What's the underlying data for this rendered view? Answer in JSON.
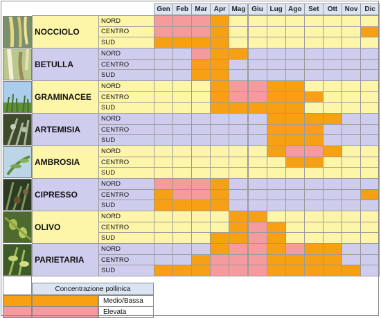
{
  "months": [
    "Gen",
    "Feb",
    "Mar",
    "Apr",
    "Mag",
    "Giu",
    "Lug",
    "Ago",
    "Set",
    "Ott",
    "Nov",
    "Dic"
  ],
  "colors": {
    "none_light": "#fdf5a8",
    "none_dark": "#cfcdee",
    "medium": "#f7a013",
    "high": "#f59a9d",
    "month_header": "#dbe4f3"
  },
  "level_codes": {
    "0": "nessuna",
    "1": "Medio/Bassa",
    "2": "Elevata"
  },
  "plants": [
    {
      "name": "NOCCIOLO",
      "band": "light",
      "photo_icon": "hazel-catkins-photo",
      "regions": [
        {
          "label": "NORD",
          "levels": [
            2,
            2,
            2,
            1,
            0,
            0,
            0,
            0,
            0,
            0,
            0,
            0
          ]
        },
        {
          "label": "CENTRO",
          "levels": [
            2,
            2,
            2,
            1,
            0,
            0,
            0,
            0,
            0,
            0,
            0,
            1
          ]
        },
        {
          "label": "SUD",
          "levels": [
            1,
            1,
            1,
            1,
            0,
            0,
            0,
            0,
            0,
            0,
            0,
            0
          ]
        }
      ]
    },
    {
      "name": "BETULLA",
      "band": "dark",
      "photo_icon": "birch-catkins-photo",
      "regions": [
        {
          "label": "NORD",
          "levels": [
            0,
            0,
            2,
            1,
            1,
            0,
            0,
            0,
            0,
            0,
            0,
            0
          ]
        },
        {
          "label": "CENTRO",
          "levels": [
            0,
            0,
            1,
            1,
            0,
            0,
            0,
            0,
            0,
            0,
            0,
            0
          ]
        },
        {
          "label": "SUD",
          "levels": [
            0,
            0,
            1,
            1,
            0,
            0,
            0,
            0,
            0,
            0,
            0,
            0
          ]
        }
      ]
    },
    {
      "name": "GRAMINACEE",
      "band": "light",
      "photo_icon": "grass-photo",
      "regions": [
        {
          "label": "NORD",
          "levels": [
            0,
            0,
            0,
            1,
            2,
            2,
            1,
            1,
            0,
            0,
            0,
            0
          ]
        },
        {
          "label": "CENTRO",
          "levels": [
            0,
            0,
            0,
            1,
            2,
            2,
            1,
            1,
            1,
            0,
            0,
            0
          ]
        },
        {
          "label": "SUD",
          "levels": [
            0,
            0,
            0,
            1,
            1,
            1,
            1,
            1,
            0,
            0,
            0,
            0
          ]
        }
      ]
    },
    {
      "name": "ARTEMISIA",
      "band": "dark",
      "photo_icon": "mugwort-photo",
      "regions": [
        {
          "label": "NORD",
          "levels": [
            0,
            0,
            0,
            0,
            0,
            0,
            1,
            1,
            1,
            1,
            0,
            0
          ]
        },
        {
          "label": "CENTRO",
          "levels": [
            0,
            0,
            0,
            0,
            0,
            0,
            1,
            1,
            1,
            0,
            0,
            0
          ]
        },
        {
          "label": "SUD",
          "levels": [
            0,
            0,
            0,
            0,
            0,
            0,
            1,
            1,
            1,
            0,
            0,
            0
          ]
        }
      ]
    },
    {
      "name": "AMBROSIA",
      "band": "light",
      "photo_icon": "ragweed-photo",
      "regions": [
        {
          "label": "NORD",
          "levels": [
            0,
            0,
            0,
            0,
            0,
            0,
            1,
            2,
            2,
            1,
            0,
            0
          ]
        },
        {
          "label": "CENTRO",
          "levels": [
            0,
            0,
            0,
            0,
            0,
            0,
            0,
            1,
            1,
            0,
            0,
            0
          ]
        },
        {
          "label": "SUD",
          "levels": [
            0,
            0,
            0,
            0,
            0,
            0,
            0,
            0,
            0,
            0,
            0,
            0
          ]
        }
      ]
    },
    {
      "name": "CIPRESSO",
      "band": "dark",
      "photo_icon": "cypress-photo",
      "regions": [
        {
          "label": "NORD",
          "levels": [
            2,
            2,
            2,
            1,
            0,
            0,
            0,
            0,
            0,
            0,
            0,
            0
          ]
        },
        {
          "label": "CENTRO",
          "levels": [
            1,
            2,
            2,
            1,
            0,
            0,
            0,
            0,
            0,
            0,
            0,
            1
          ]
        },
        {
          "label": "SUD",
          "levels": [
            1,
            1,
            1,
            1,
            0,
            0,
            0,
            0,
            0,
            0,
            0,
            0
          ]
        }
      ]
    },
    {
      "name": "OLIVO",
      "band": "light",
      "photo_icon": "olive-photo",
      "regions": [
        {
          "label": "NORD",
          "levels": [
            0,
            0,
            0,
            0,
            1,
            1,
            0,
            0,
            0,
            0,
            0,
            0
          ]
        },
        {
          "label": "CENTRO",
          "levels": [
            0,
            0,
            0,
            0,
            1,
            2,
            1,
            0,
            0,
            0,
            0,
            0
          ]
        },
        {
          "label": "SUD",
          "levels": [
            0,
            0,
            0,
            1,
            1,
            2,
            1,
            0,
            0,
            0,
            0,
            0
          ]
        }
      ]
    },
    {
      "name": "PARIETARIA",
      "band": "dark",
      "photo_icon": "pellitory-photo",
      "regions": [
        {
          "label": "NORD",
          "levels": [
            0,
            0,
            0,
            1,
            2,
            2,
            1,
            2,
            1,
            1,
            0,
            0
          ]
        },
        {
          "label": "CENTRO",
          "levels": [
            0,
            0,
            1,
            2,
            2,
            2,
            1,
            1,
            1,
            1,
            0,
            0
          ]
        },
        {
          "label": "SUD",
          "levels": [
            1,
            1,
            1,
            2,
            2,
            2,
            1,
            1,
            1,
            1,
            1,
            0
          ]
        }
      ]
    }
  ],
  "legend": {
    "title": "Concentrazione pollinica",
    "items": [
      {
        "label": "Medio/Bassa",
        "color": "#f7a013"
      },
      {
        "label": "Elevata",
        "color": "#f59a9d"
      }
    ]
  }
}
